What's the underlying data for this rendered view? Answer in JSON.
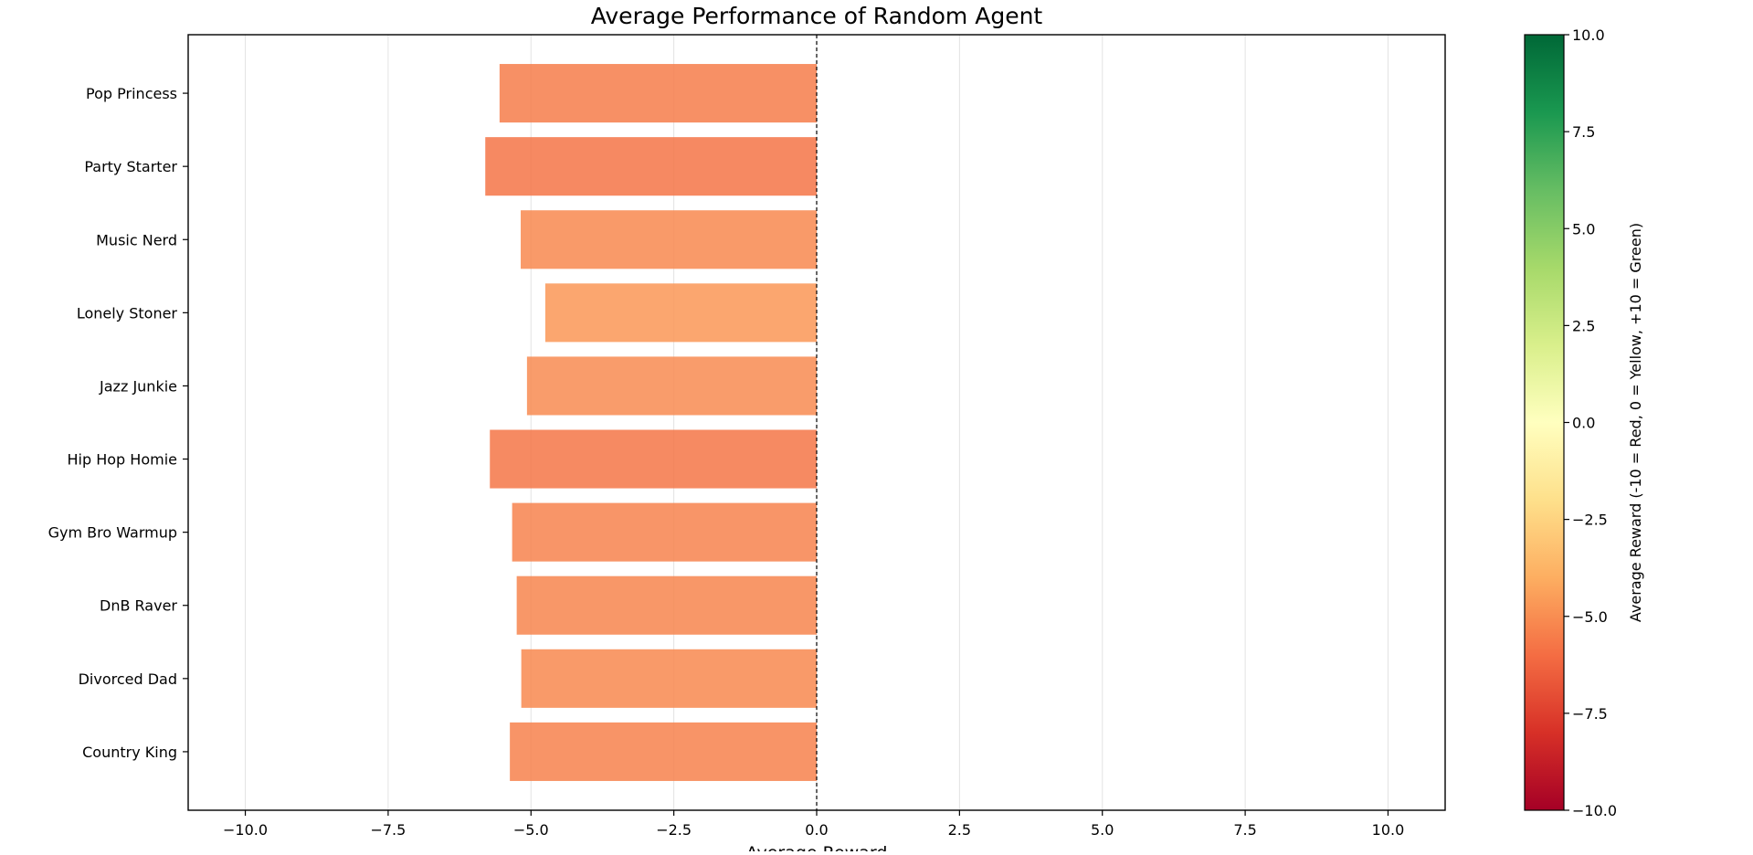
{
  "chart_data": {
    "type": "bar",
    "orientation": "horizontal",
    "title": "Average Performance of Random Agent",
    "xlabel": "Average Reward",
    "ylabel": "",
    "categories": [
      "Pop Princess",
      "Party Starter",
      "Music Nerd",
      "Lonely Stoner",
      "Jazz Junkie",
      "Hip Hop Homie",
      "Gym Bro Warmup",
      "DnB Raver",
      "Divorced Dad",
      "Country King"
    ],
    "values": [
      -5.55,
      -5.8,
      -5.18,
      -4.75,
      -5.07,
      -5.72,
      -5.33,
      -5.25,
      -5.17,
      -5.37
    ],
    "xlim": [
      -11,
      11
    ],
    "xticks": [
      -10.0,
      -7.5,
      -5.0,
      -2.5,
      0.0,
      2.5,
      5.0,
      7.5,
      10.0
    ],
    "xtick_labels": [
      "−10.0",
      "−7.5",
      "−5.0",
      "−2.5",
      "0.0",
      "2.5",
      "5.0",
      "7.5",
      "10.0"
    ],
    "grid": "vertical",
    "reference_line": 0,
    "colorbar": {
      "label": "Average Reward (-10 = Red, 0 = Yellow, +10 = Green)",
      "range": [
        -10,
        10
      ],
      "colormap": "RdYlGn",
      "ticks": [
        10.0,
        7.5,
        5.0,
        2.5,
        0.0,
        -2.5,
        -5.0,
        -7.5,
        -10.0
      ],
      "tick_labels": [
        "10.0",
        "7.5",
        "5.0",
        "2.5",
        "0.0",
        "−2.5",
        "−5.0",
        "−7.5",
        "−10.0"
      ]
    }
  }
}
